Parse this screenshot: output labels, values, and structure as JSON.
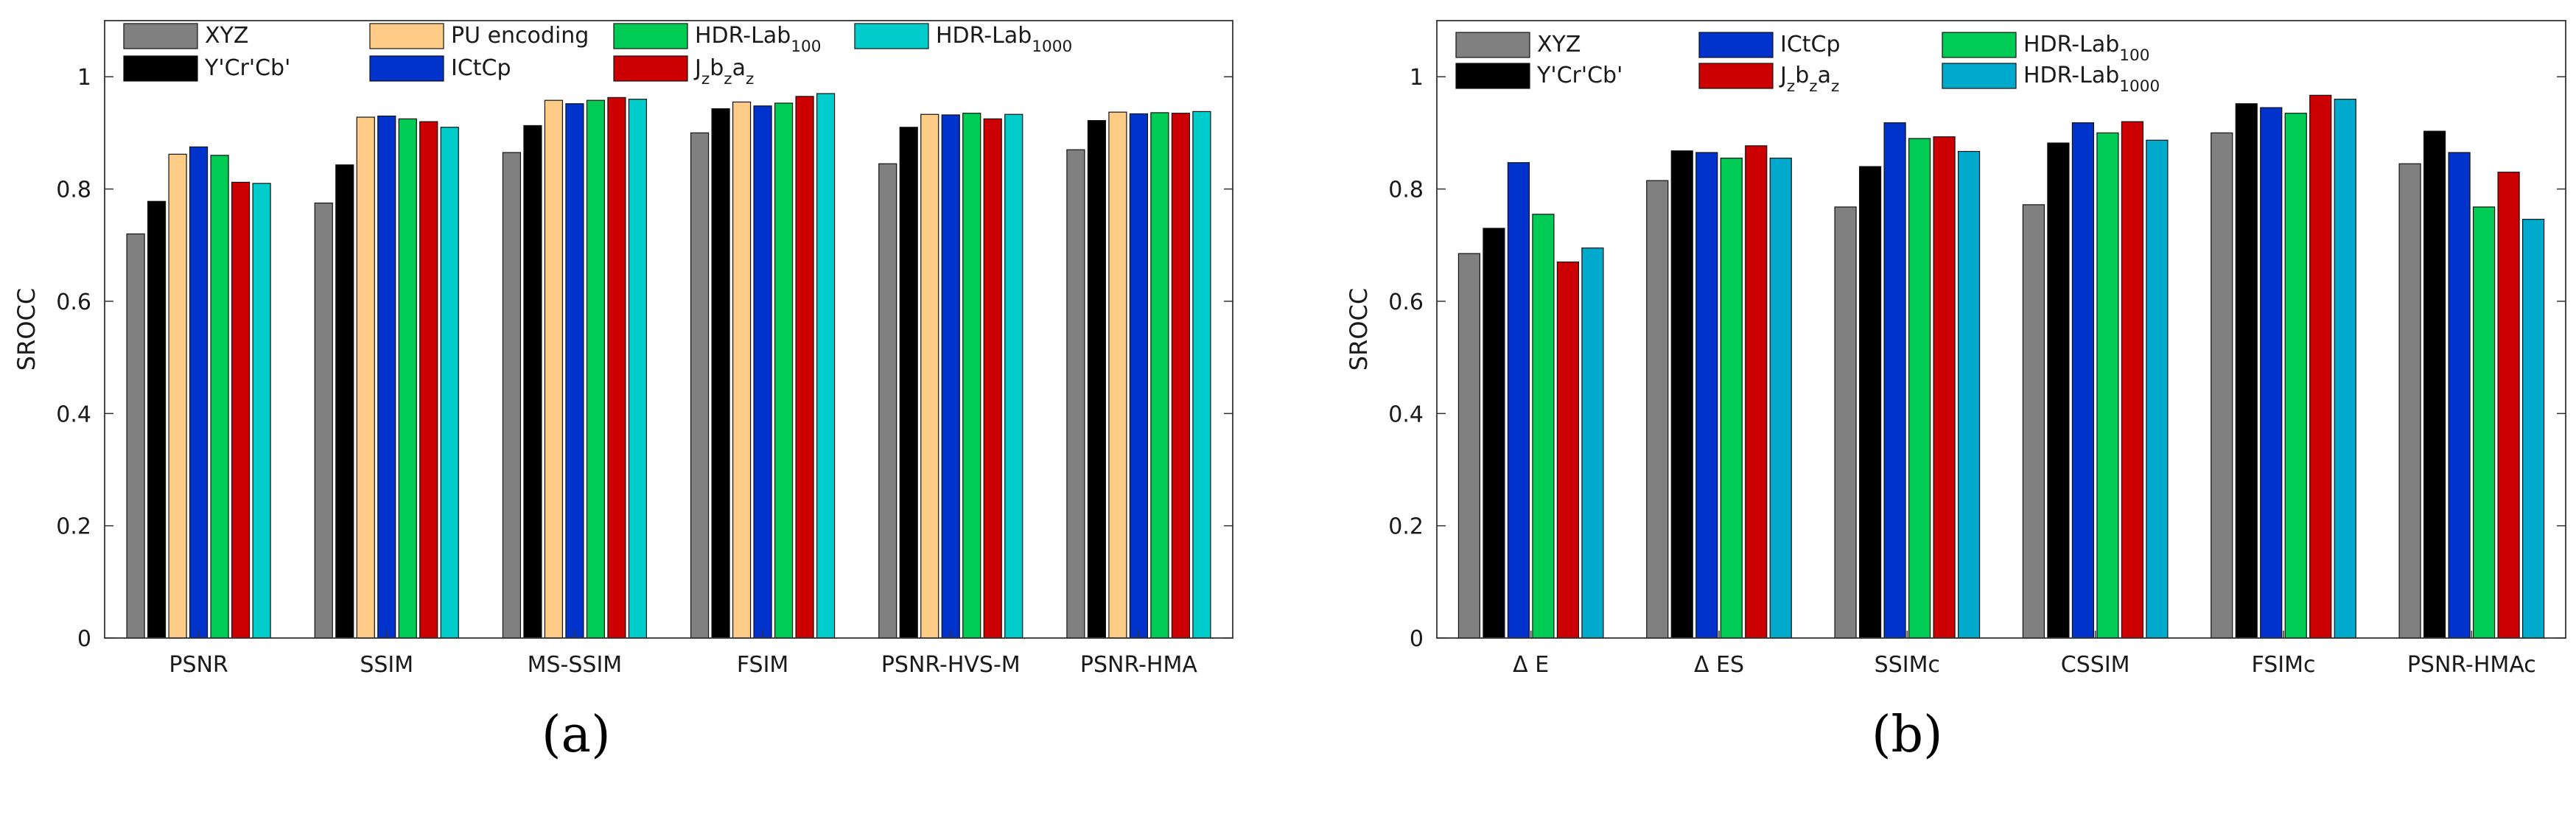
{
  "figure": {
    "panel_labels": [
      "(a)",
      "(b)"
    ]
  },
  "chart_data": [
    {
      "type": "bar",
      "panel": "(a)",
      "title": "",
      "xlabel": "",
      "ylabel": "SROCC",
      "ylim": [
        0,
        1.1
      ],
      "yticks": [
        0,
        0.2,
        0.4,
        0.6,
        0.8,
        1
      ],
      "ytick_labels": [
        "0",
        "0.2",
        "0.4",
        "0.6",
        "0.8",
        "1"
      ],
      "grid": false,
      "legend_position": "top",
      "categories": [
        "PSNR",
        "SSIM",
        "MS-SSIM",
        "FSIM",
        "PSNR-HVS-M",
        "PSNR-HMA"
      ],
      "series": [
        {
          "name": "XYZ",
          "color": "#808080",
          "values": [
            0.72,
            0.775,
            0.865,
            0.9,
            0.845,
            0.87
          ]
        },
        {
          "name": "Y'Cr'Cb'",
          "color": "#000000",
          "values": [
            0.778,
            0.843,
            0.913,
            0.943,
            0.91,
            0.922
          ]
        },
        {
          "name": "PU encoding",
          "color": "#FFCC88",
          "values": [
            0.862,
            0.928,
            0.958,
            0.955,
            0.933,
            0.937
          ]
        },
        {
          "name": "ICtCp",
          "color": "#0033CC",
          "values": [
            0.875,
            0.93,
            0.952,
            0.948,
            0.932,
            0.934
          ]
        },
        {
          "name": "HDR-Lab",
          "sub": "100",
          "color": "#00CC55",
          "values": [
            0.86,
            0.925,
            0.958,
            0.953,
            0.935,
            0.936
          ]
        },
        {
          "name": "J",
          "sub_parts": "Jzbzaz",
          "color": "#CC0000",
          "values": [
            0.812,
            0.92,
            0.963,
            0.965,
            0.925,
            0.935
          ]
        },
        {
          "name": "HDR-Lab",
          "sub": "1000",
          "color": "#00CCCC",
          "values": [
            0.81,
            0.91,
            0.96,
            0.97,
            0.933,
            0.938
          ]
        }
      ],
      "legend_labels": [
        "XYZ",
        "Y'Cr'Cb'",
        "PU encoding",
        "ICtCp",
        "HDR-Lab100",
        "Jzbzaz",
        "HDR-Lab1000"
      ]
    },
    {
      "type": "bar",
      "panel": "(b)",
      "title": "",
      "xlabel": "",
      "ylabel": "SROCC",
      "ylim": [
        0,
        1.1
      ],
      "yticks": [
        0,
        0.2,
        0.4,
        0.6,
        0.8,
        1
      ],
      "ytick_labels": [
        "0",
        "0.2",
        "0.4",
        "0.6",
        "0.8",
        "1"
      ],
      "grid": false,
      "legend_position": "top",
      "categories": [
        "Δ E",
        "Δ ES",
        "SSIMc",
        "CSSIM",
        "FSIMc",
        "PSNR-HMAc"
      ],
      "series": [
        {
          "name": "XYZ",
          "color": "#808080",
          "values": [
            0.685,
            0.815,
            0.768,
            0.772,
            0.9,
            0.845
          ]
        },
        {
          "name": "Y'Cr'Cb'",
          "color": "#000000",
          "values": [
            0.73,
            0.868,
            0.84,
            0.882,
            0.952,
            0.903
          ]
        },
        {
          "name": "ICtCp",
          "color": "#0033CC",
          "values": [
            0.847,
            0.865,
            0.918,
            0.918,
            0.945,
            0.865
          ]
        },
        {
          "name": "HDR-Lab",
          "sub": "100",
          "color": "#00CC55",
          "values": [
            0.755,
            0.855,
            0.89,
            0.9,
            0.935,
            0.768
          ]
        },
        {
          "name": "J",
          "sub_parts": "Jzbzaz",
          "color": "#CC0000",
          "values": [
            0.67,
            0.877,
            0.893,
            0.92,
            0.967,
            0.83
          ]
        },
        {
          "name": "HDR-Lab",
          "sub": "1000",
          "color": "#00AACC",
          "values": [
            0.695,
            0.855,
            0.867,
            0.887,
            0.96,
            0.746
          ]
        }
      ],
      "legend_labels": [
        "XYZ",
        "Y'Cr'Cb'",
        "ICtCp",
        "HDR-Lab100",
        "Jzbzaz",
        "HDR-Lab1000"
      ]
    }
  ]
}
